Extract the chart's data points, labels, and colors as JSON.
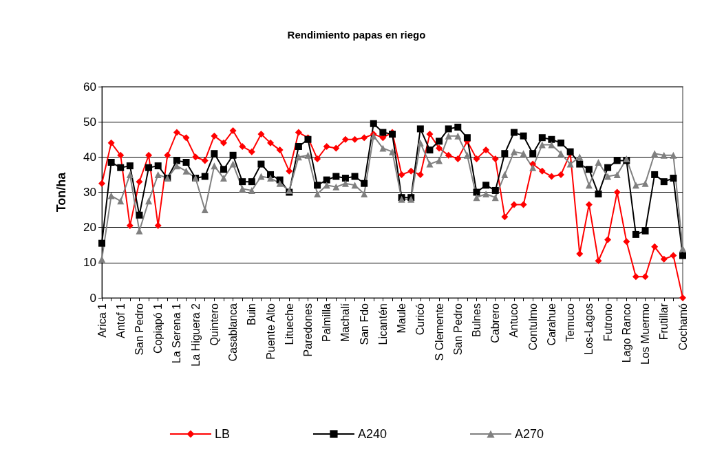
{
  "chart_data": {
    "type": "line",
    "title": "Rendimiento papas en riego",
    "ylabel": "Ton/ha",
    "categories": [
      "Arica 1",
      null,
      "Antof 1",
      null,
      "San Pedro",
      null,
      "Copiapó 1",
      null,
      "La Serena 1",
      null,
      "La Higuera 2",
      null,
      "Quintero",
      null,
      "Casablanca",
      null,
      "Buin",
      null,
      "Puente Alto",
      null,
      "Litueche",
      null,
      "Paredones",
      null,
      "Palmilla",
      null,
      "Machalí",
      null,
      "San Fdo",
      null,
      "Licantén",
      null,
      "Maule",
      null,
      "Curicó",
      null,
      "S Clemente",
      null,
      "San Pedro",
      null,
      "Bulnes",
      null,
      "Cabrero",
      null,
      "Antuco",
      null,
      "Contulmo",
      null,
      "Carahue",
      null,
      "Temuco",
      null,
      "Los-Lagos",
      null,
      "Futrono",
      null,
      "Lago Ranco",
      null,
      "Los Muermo",
      null,
      "Frutillar",
      null,
      "Cochamó"
    ],
    "series": [
      {
        "name": "LB",
        "color": "#ff0000",
        "marker": "diamond",
        "values": [
          32.5,
          44,
          40.5,
          20.5,
          33,
          40.5,
          20.5,
          40.5,
          47,
          45.5,
          40,
          39,
          46,
          44,
          47.5,
          43,
          41.5,
          46.5,
          44,
          42,
          36,
          47,
          45.5,
          39.5,
          43,
          42.5,
          45,
          45,
          45.5,
          46.5,
          45.5,
          47,
          35,
          36,
          35,
          46.5,
          42.5,
          40.5,
          39.5,
          44.5,
          39.5,
          42,
          39.5,
          23,
          26.5,
          26.5,
          38,
          36,
          34.5,
          35,
          41,
          12.5,
          26.5,
          10.5,
          16.5,
          30,
          16,
          6,
          6,
          14.5,
          11,
          12,
          0
        ]
      },
      {
        "name": "A240",
        "color": "#000000",
        "marker": "square",
        "values": [
          15.5,
          38.5,
          37,
          37.5,
          23.5,
          37,
          37.5,
          34,
          39,
          38.5,
          34,
          34.5,
          41,
          36.5,
          40.5,
          33,
          33,
          38,
          35,
          33.5,
          30,
          43,
          45,
          32,
          33.5,
          34.5,
          34,
          34.5,
          32.5,
          49.5,
          47,
          46.5,
          28.5,
          28.5,
          48,
          42,
          44.5,
          48,
          48.5,
          45.5,
          30,
          32,
          30.5,
          41,
          47,
          46,
          41,
          45.5,
          45,
          44,
          41.5,
          38,
          36.5,
          29.5,
          37,
          39,
          39,
          18,
          19,
          35,
          33,
          34,
          12
        ]
      },
      {
        "name": "A270",
        "color": "#808080",
        "marker": "triangle",
        "values": [
          11,
          29,
          27.5,
          35,
          19,
          27.5,
          35,
          34,
          37.5,
          36,
          34,
          25,
          37.5,
          34,
          38,
          31,
          30.5,
          34.5,
          34,
          32.5,
          30.5,
          40,
          40.5,
          29.5,
          32,
          31.5,
          32.5,
          32,
          29.5,
          46,
          42.5,
          41.5,
          28,
          28,
          44,
          38,
          39,
          46,
          46,
          40.5,
          28.5,
          29.5,
          28.5,
          35,
          41.5,
          41,
          37,
          43.5,
          43.5,
          41,
          38,
          40,
          32,
          38.5,
          34.5,
          35,
          39.5,
          32,
          32.5,
          41,
          40.5,
          40.5,
          14
        ]
      }
    ],
    "ylim": [
      0,
      60
    ],
    "yticks": [
      0,
      10,
      20,
      30,
      40,
      50,
      60
    ],
    "grid": "y",
    "legend": "bottom",
    "line_style": "solid"
  }
}
